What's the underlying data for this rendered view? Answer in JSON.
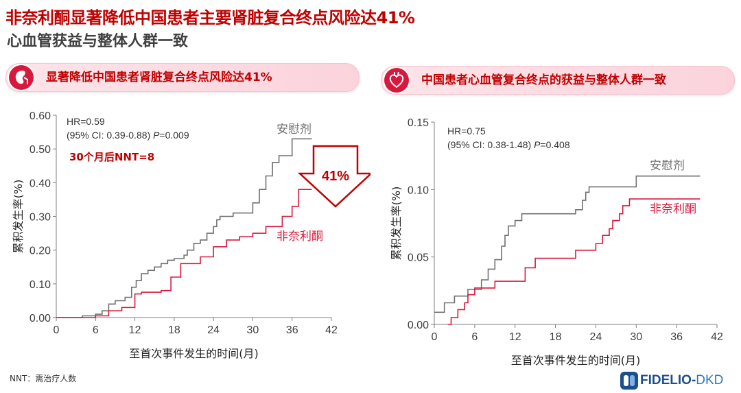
{
  "title_line1": "非奈利酮显著降低中国患者主要肾脏复合终点风险达41%",
  "title_line2": "心血管获益与整体人群一致",
  "left_banner": {
    "text": "显著降低中国患者肾脏复合终点风险达41%",
    "icon": "kidney-icon"
  },
  "right_banner": {
    "text": "中国患者心血管复合终点的获益与整体人群一致",
    "icon": "heart-icon"
  },
  "footnote": "NNT：需治疗人数",
  "logo": {
    "brand": "FIDELIO-",
    "suffix": "DKD",
    "icon": "fidelio-logo-icon"
  },
  "colors": {
    "placebo": "#707070",
    "finerenone": "#d7193d",
    "accent": "#c00000"
  },
  "chart_data": [
    {
      "type": "line",
      "step": true,
      "xlabel": "至首次事件发生的时间(月)",
      "ylabel": "累积发生率(%)",
      "xlim": [
        0,
        42
      ],
      "ylim": [
        0,
        0.6
      ],
      "xticks": [
        0,
        6,
        12,
        18,
        24,
        30,
        36,
        42
      ],
      "yticks": [
        "0.00",
        "0.10",
        "0.20",
        "0.30",
        "0.40",
        "0.50",
        "0.60"
      ],
      "grid": false,
      "annotations": {
        "hr": "HR=0.59",
        "ci": "(95% CI: 0.39-0.88)",
        "p_label": "P",
        "p_value": "=0.009",
        "nnt": "30个月后NNT=8",
        "reduction": "41%"
      },
      "series": [
        {
          "name": "安慰剂",
          "color": "#707070",
          "points": [
            [
              0,
              0
            ],
            [
              4,
              0.005
            ],
            [
              6,
              0.01
            ],
            [
              7,
              0.02
            ],
            [
              8,
              0.04
            ],
            [
              9,
              0.05
            ],
            [
              10.5,
              0.06
            ],
            [
              11.5,
              0.09
            ],
            [
              12.2,
              0.11
            ],
            [
              13,
              0.13
            ],
            [
              14,
              0.14
            ],
            [
              15,
              0.15
            ],
            [
              16,
              0.16
            ],
            [
              17,
              0.17
            ],
            [
              18,
              0.175
            ],
            [
              19.5,
              0.185
            ],
            [
              20,
              0.2
            ],
            [
              21,
              0.22
            ],
            [
              22,
              0.23
            ],
            [
              23,
              0.25
            ],
            [
              24,
              0.27
            ],
            [
              24.5,
              0.29
            ],
            [
              25,
              0.3
            ],
            [
              27,
              0.31
            ],
            [
              30,
              0.34
            ],
            [
              31,
              0.38
            ],
            [
              32,
              0.42
            ],
            [
              33,
              0.46
            ],
            [
              34,
              0.48
            ],
            [
              36,
              0.53
            ],
            [
              37,
              0.53
            ],
            [
              39,
              0.53
            ]
          ]
        },
        {
          "name": "非奈利酮",
          "color": "#d7193d",
          "points": [
            [
              0,
              0
            ],
            [
              6,
              0.005
            ],
            [
              8,
              0.02
            ],
            [
              10,
              0.03
            ],
            [
              12,
              0.07
            ],
            [
              13,
              0.075
            ],
            [
              16,
              0.08
            ],
            [
              17.5,
              0.12
            ],
            [
              19,
              0.16
            ],
            [
              22,
              0.18
            ],
            [
              24,
              0.21
            ],
            [
              26,
              0.23
            ],
            [
              28,
              0.24
            ],
            [
              30,
              0.25
            ],
            [
              32,
              0.27
            ],
            [
              34.5,
              0.3
            ],
            [
              36,
              0.33
            ],
            [
              37,
              0.38
            ],
            [
              39,
              0.38
            ]
          ]
        }
      ]
    },
    {
      "type": "line",
      "step": true,
      "xlabel": "至首次事件发生的时间(月)",
      "ylabel": "累积发生率(%)",
      "xlim": [
        0,
        42
      ],
      "ylim": [
        0,
        0.15
      ],
      "xticks": [
        0,
        6,
        12,
        18,
        24,
        30,
        36,
        42
      ],
      "yticks": [
        "0.00",
        "0.05",
        "0.10",
        "0.15"
      ],
      "grid": false,
      "annotations": {
        "hr": "HR=0.75",
        "ci": "(95% CI: 0.38-1.48)",
        "p_label": "P",
        "p_value": "=0.408"
      },
      "series": [
        {
          "name": "安慰剂",
          "color": "#707070",
          "points": [
            [
              0,
              0.009
            ],
            [
              1.5,
              0.016
            ],
            [
              3,
              0.021
            ],
            [
              5,
              0.026
            ],
            [
              7,
              0.033
            ],
            [
              8,
              0.041
            ],
            [
              9,
              0.048
            ],
            [
              10,
              0.058
            ],
            [
              10.5,
              0.066
            ],
            [
              11,
              0.073
            ],
            [
              12,
              0.077
            ],
            [
              13,
              0.082
            ],
            [
              18,
              0.082
            ],
            [
              21,
              0.085
            ],
            [
              22,
              0.092
            ],
            [
              22.5,
              0.098
            ],
            [
              23,
              0.102
            ],
            [
              29,
              0.102
            ],
            [
              30,
              0.11
            ],
            [
              33,
              0.11
            ],
            [
              38,
              0.11
            ],
            [
              39.5,
              0.11
            ]
          ]
        },
        {
          "name": "非奈利酮",
          "color": "#d7193d",
          "points": [
            [
              2,
              0
            ],
            [
              2.5,
              0.005
            ],
            [
              3.5,
              0.011
            ],
            [
              4.5,
              0.016
            ],
            [
              5,
              0.022
            ],
            [
              6,
              0.027
            ],
            [
              9,
              0.032
            ],
            [
              13.5,
              0.042
            ],
            [
              15,
              0.049
            ],
            [
              21,
              0.055
            ],
            [
              24,
              0.06
            ],
            [
              25,
              0.066
            ],
            [
              26,
              0.071
            ],
            [
              26.5,
              0.077
            ],
            [
              27.5,
              0.082
            ],
            [
              28,
              0.088
            ],
            [
              29,
              0.093
            ],
            [
              33,
              0.093
            ],
            [
              39.5,
              0.093
            ]
          ]
        }
      ]
    }
  ]
}
